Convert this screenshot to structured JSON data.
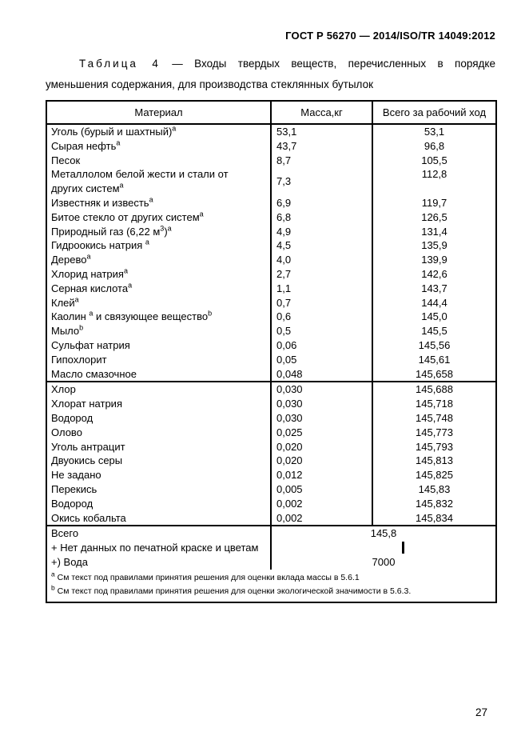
{
  "page": {
    "doc_header": "ГОСТ Р 56270 — 2014/ISO/TR 14049:2012",
    "page_number": "27"
  },
  "table": {
    "title": {
      "label": "Таблица 4",
      "dash": "—",
      "line1_rest": "Входы твердых веществ, перечисленных в порядке",
      "line2": "уменьшения содержания, для производства стеклянных бутылок"
    },
    "columns": [
      "Материал",
      "Масса,кг",
      "Всего за рабочий ход"
    ],
    "sections": [
      {
        "rows": [
          [
            "Уголь (бурый и шахтный)^a",
            "53,1",
            "53,1"
          ],
          [
            "Сырая нефть^a",
            "43,7",
            "96,8"
          ],
          [
            "Песок",
            "8,7",
            "105,5"
          ],
          [
            "Металлолом белой жести и стали от\nдругих систем^a",
            "7,3",
            "112,8"
          ],
          [
            "Известняк и известь^a",
            "6,9",
            "119,7"
          ],
          [
            "Битое стекло от других систем^a",
            "6,8",
            "126,5"
          ],
          [
            "Природный газ (6,22 м^3)^a",
            "4,9",
            "131,4"
          ],
          [
            "Гидроокись натрия ^a",
            "4,5",
            "135,9"
          ],
          [
            "Дерево^a",
            "4,0",
            "139,9"
          ],
          [
            "Хлорид натрия^a",
            "2,7",
            "142,6"
          ],
          [
            "Серная кислота^a",
            "1,1",
            "143,7"
          ],
          [
            "Клей^a",
            "0,7",
            "144,4"
          ],
          [
            "Каолин ^a и связующее вещество^b",
            "0,6",
            "145,0"
          ],
          [
            "Мыло^b",
            "0,5",
            "145,5"
          ],
          [
            "Сульфат натрия",
            "0,06",
            "145,56"
          ],
          [
            "Гипохлорит",
            "0,05",
            "145,61"
          ],
          [
            "Масло смазочное",
            "0,048",
            "145,658"
          ]
        ]
      },
      {
        "rows": [
          [
            "Хлор",
            "0,030",
            "145,688"
          ],
          [
            "Хлорат натрия",
            "0,030",
            "145,718"
          ],
          [
            "Водород",
            "0,030",
            "145,748"
          ],
          [
            "Олово",
            "0,025",
            "145,773"
          ],
          [
            "Уголь антрацит",
            "0,020",
            "145,793"
          ],
          [
            "Двуокись серы",
            "0,020",
            "145,813"
          ],
          [
            "Не задано",
            "0,012",
            "145,825"
          ],
          [
            "Перекись",
            "0,005",
            "145,83"
          ],
          [
            "Водород",
            "0,002",
            "145,832"
          ],
          [
            "Окись кобальта",
            "0,002",
            "145,834"
          ]
        ]
      }
    ],
    "footer": {
      "total_label": "Всего",
      "total_value": "145,8",
      "note1": "+ Нет данных по печатной краске и цветам",
      "water_label": "+) Вода",
      "water_value": "7000"
    },
    "footnotes": [
      {
        "marker": "a",
        "text": "См текст под правилами принятия решения для оценки вклада массы в 5.6.1"
      },
      {
        "marker": "b",
        "text": "См текст под правилами принятия решения для оценки экологической значимости в  5.6.3."
      }
    ]
  }
}
